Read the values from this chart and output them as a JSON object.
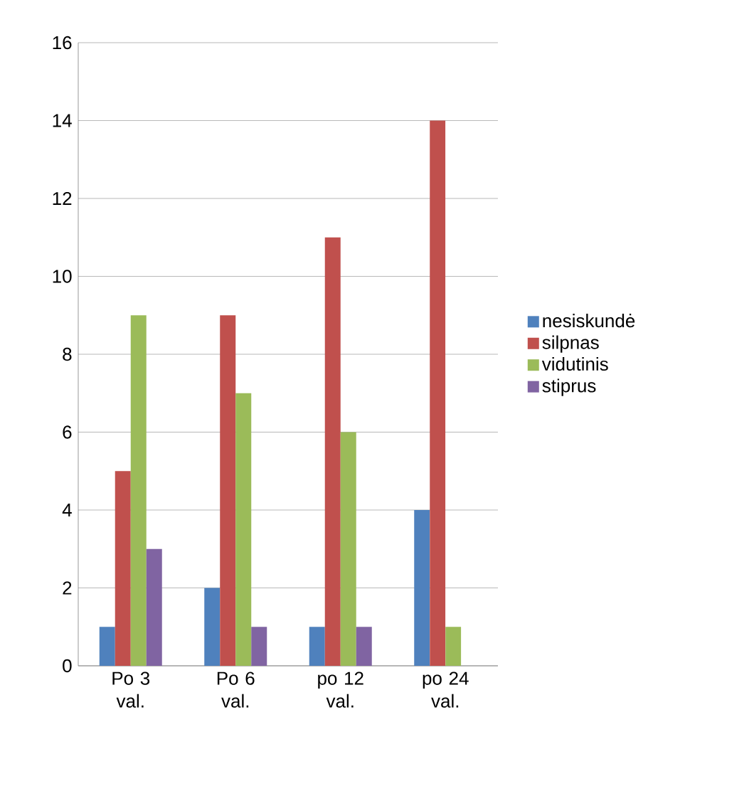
{
  "chart_data": {
    "type": "bar",
    "categories": [
      "Po 3 val.",
      "Po 6 val.",
      "po 12 val.",
      "po 24 val."
    ],
    "series": [
      {
        "name": "nesiskundė",
        "color": "#4f81bd",
        "values": [
          1,
          2,
          1,
          4
        ]
      },
      {
        "name": "silpnas",
        "color": "#c0504d",
        "values": [
          5,
          9,
          11,
          14
        ]
      },
      {
        "name": "vidutinis",
        "color": "#9bbb59",
        "values": [
          9,
          7,
          6,
          1
        ]
      },
      {
        "name": "stiprus",
        "color": "#8064a2",
        "values": [
          3,
          1,
          1,
          0
        ]
      }
    ],
    "ylim": [
      0,
      16
    ],
    "yticks": [
      0,
      2,
      4,
      6,
      8,
      10,
      12,
      14,
      16
    ],
    "grid": "y",
    "legend": "right"
  }
}
